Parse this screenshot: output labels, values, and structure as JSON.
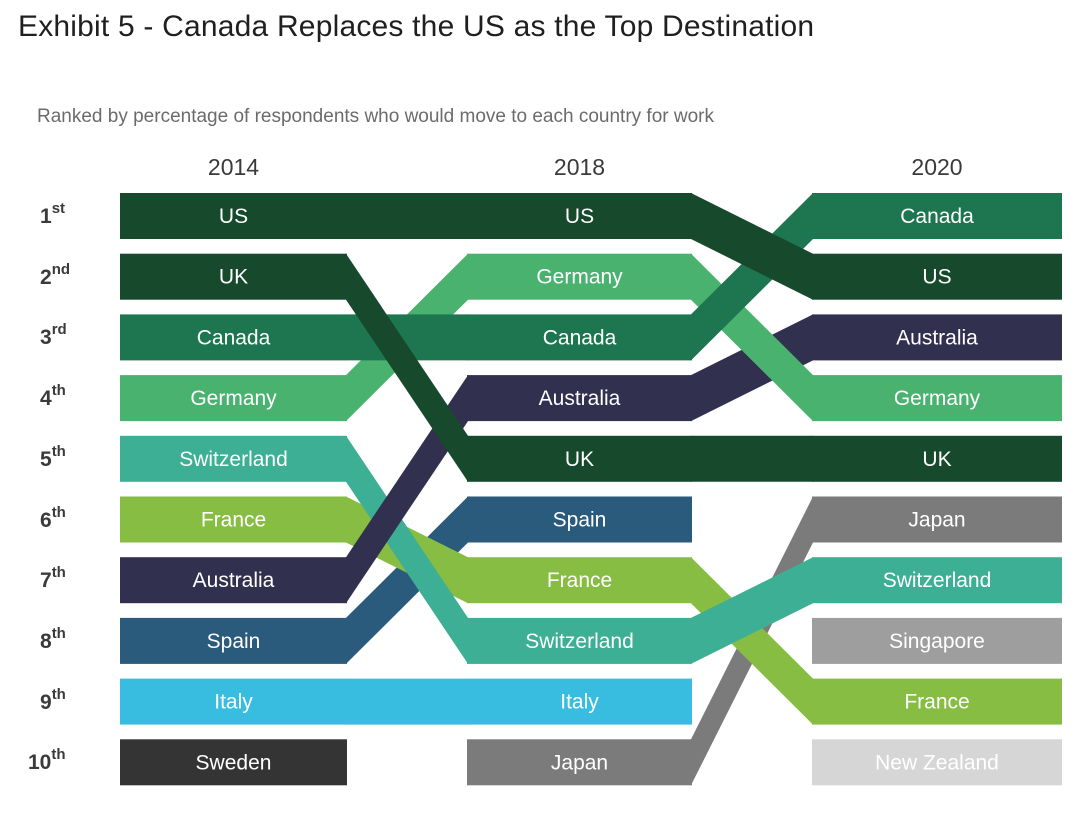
{
  "title": "Exhibit 5 - Canada Replaces the US as the Top Destination",
  "subtitle": "Ranked by percentage of respondents who would move to each country for work",
  "colors": {
    "US": "#17492d",
    "UK": "#17492d",
    "Canada": "#1e7650",
    "Germany": "#4ab26f",
    "Switzerland": "#3caf94",
    "France": "#87bd43",
    "Australia": "#32304f",
    "Spain": "#2a5a7c",
    "Italy": "#38bcdf",
    "Sweden": "#343434",
    "Japan": "#7b7b7b",
    "Singapore": "#9e9e9e",
    "New Zealand": "#d6d6d6"
  },
  "chart_data": {
    "type": "bump",
    "subtitle": "Ranked by percentage of respondents who would move to each country for work",
    "years": [
      "2014",
      "2018",
      "2020"
    ],
    "rank_labels": [
      {
        "num": "1",
        "suffix": "st"
      },
      {
        "num": "2",
        "suffix": "nd"
      },
      {
        "num": "3",
        "suffix": "rd"
      },
      {
        "num": "4",
        "suffix": "th"
      },
      {
        "num": "5",
        "suffix": "th"
      },
      {
        "num": "6",
        "suffix": "th"
      },
      {
        "num": "7",
        "suffix": "th"
      },
      {
        "num": "8",
        "suffix": "th"
      },
      {
        "num": "9",
        "suffix": "th"
      },
      {
        "num": "10",
        "suffix": "th"
      }
    ],
    "series": [
      {
        "name": "US",
        "ranks": [
          1,
          1,
          2
        ]
      },
      {
        "name": "UK",
        "ranks": [
          2,
          5,
          5
        ]
      },
      {
        "name": "Canada",
        "ranks": [
          3,
          3,
          1
        ]
      },
      {
        "name": "Germany",
        "ranks": [
          4,
          2,
          4
        ]
      },
      {
        "name": "Switzerland",
        "ranks": [
          5,
          8,
          7
        ]
      },
      {
        "name": "France",
        "ranks": [
          6,
          7,
          9
        ]
      },
      {
        "name": "Australia",
        "ranks": [
          7,
          4,
          3
        ]
      },
      {
        "name": "Spain",
        "ranks": [
          8,
          6,
          null
        ]
      },
      {
        "name": "Italy",
        "ranks": [
          9,
          9,
          null
        ]
      },
      {
        "name": "Sweden",
        "ranks": [
          10,
          null,
          null
        ]
      },
      {
        "name": "Japan",
        "ranks": [
          null,
          10,
          6
        ]
      },
      {
        "name": "Singapore",
        "ranks": [
          null,
          null,
          8
        ]
      },
      {
        "name": "New Zealand",
        "ranks": [
          null,
          null,
          10
        ]
      }
    ],
    "draw_order": [
      "Sweden",
      "New Zealand",
      "Singapore",
      "Japan",
      "Italy",
      "Spain",
      "France",
      "Switzerland",
      "Australia",
      "Germany",
      "Canada",
      "UK",
      "US"
    ]
  }
}
